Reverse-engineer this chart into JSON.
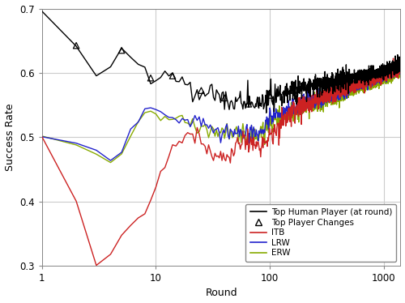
{
  "title": "",
  "xlabel": "Round",
  "ylabel": "Success Rate",
  "xlim_log": [
    0,
    3.17609
  ],
  "ylim": [
    0.3,
    0.7
  ],
  "yticks": [
    0.3,
    0.4,
    0.5,
    0.6,
    0.7
  ],
  "xticks": [
    1,
    10,
    100,
    1000
  ],
  "colors": {
    "top_human": "#000000",
    "ITB": "#cc2222",
    "LRW": "#2222cc",
    "ERW": "#88aa00"
  },
  "legend_labels": [
    "Top Human Player (at round)",
    "Top Player Changes",
    "ITB",
    "LRW",
    "ERW"
  ],
  "grid_color": "#cccccc",
  "spine_color": "#888888",
  "bg_color": "#ffffff"
}
